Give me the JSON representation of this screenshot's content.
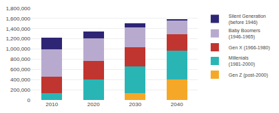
{
  "chart_data": {
    "type": "bar",
    "stacked": true,
    "categories": [
      "2010",
      "2020",
      "2030",
      "2040"
    ],
    "series": [
      {
        "name": "Gen Z (post-2000)",
        "color": "#F5A827",
        "values": [
          0,
          0,
          130000,
          400000
        ]
      },
      {
        "name": "Millenials\n(1981-2000)",
        "color": "#2AB5B5",
        "values": [
          130000,
          400000,
          530000,
          570000
        ]
      },
      {
        "name": "Gen X (1966-1980)",
        "color": "#C03530",
        "values": [
          330000,
          360000,
          380000,
          320000
        ]
      },
      {
        "name": "Baby Boomers\n(1946-1965)",
        "color": "#B8AACE",
        "values": [
          530000,
          450000,
          390000,
          280000
        ]
      },
      {
        "name": "Silent Generation\n(before 1946)",
        "color": "#2E2575",
        "values": [
          230000,
          140000,
          70000,
          20000
        ]
      }
    ],
    "ylim": [
      0,
      1800000
    ],
    "yticks": [
      0,
      {
        "value": 200000,
        "label": "200,000"
      },
      {
        "value": 400000,
        "label": "400,000"
      },
      {
        "value": 600000,
        "label": "600,000"
      },
      {
        "value": 800000,
        "label": "800,000"
      },
      {
        "value": 1000000,
        "label": "1,000,000"
      },
      {
        "value": 1200000,
        "label": "1,200,000"
      },
      {
        "value": 1400000,
        "label": "1,400,000"
      },
      {
        "value": 1600000,
        "label": "1,600,000"
      },
      {
        "value": 1800000,
        "label": "1,800,000"
      }
    ],
    "grid": true,
    "legend": "upper right"
  }
}
